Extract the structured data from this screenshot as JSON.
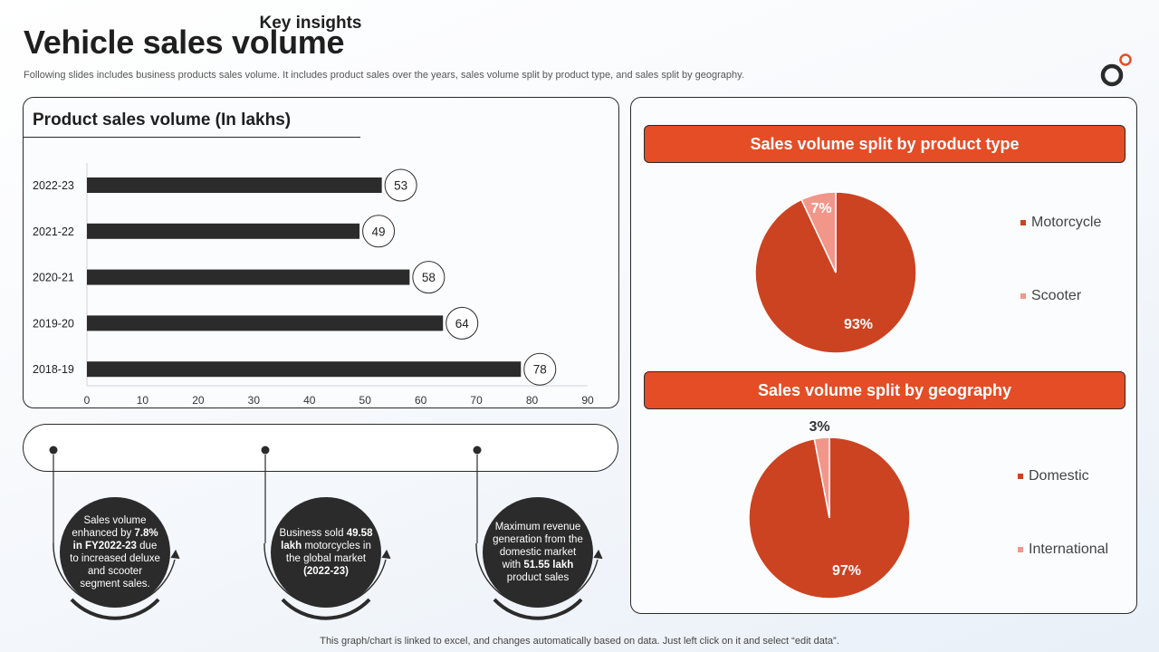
{
  "header": {
    "title": "Vehicle sales volume",
    "subtitle": "Following slides includes business products sales volume. It includes product sales over the years, sales volume split by product type, and sales split by geography."
  },
  "colors": {
    "bar": "#2b2b2b",
    "primary": "#cc4322",
    "secondary": "#f2968a",
    "header": "#e44d26",
    "dark": "#2b2b2b"
  },
  "chart_data": [
    {
      "type": "bar",
      "orientation": "horizontal",
      "title": "Product sales volume (In lakhs)",
      "categories": [
        "2022-23",
        "2021-22",
        "2020-21",
        "2019-20",
        "2018-19"
      ],
      "values": [
        53,
        49,
        58,
        64,
        78
      ],
      "xlim": [
        0,
        90
      ],
      "xticks": [
        0,
        10,
        20,
        30,
        40,
        50,
        60,
        70,
        80,
        90
      ],
      "value_labels": [
        "53",
        "49",
        "58",
        "64",
        "78"
      ]
    },
    {
      "type": "pie",
      "title": "Sales volume split by product type",
      "labels": [
        "Motorcycle",
        "Scooter"
      ],
      "values": [
        93,
        7
      ],
      "value_labels": [
        "93%",
        "7%"
      ],
      "legend": "right"
    },
    {
      "type": "pie",
      "title": "Sales volume split by geography",
      "labels": [
        "Domestic",
        "International"
      ],
      "values": [
        97,
        3
      ],
      "value_labels": [
        "97%",
        "3%"
      ],
      "legend": "right"
    }
  ],
  "insights": {
    "title": "Key insights",
    "items": [
      {
        "parts": [
          {
            "t": "Sales volume enhanced by ",
            "b": false
          },
          {
            "t": "7.8% in FY2022-23",
            "b": true
          },
          {
            "t": " due to increased deluxe and scooter segment sales.",
            "b": false
          }
        ]
      },
      {
        "parts": [
          {
            "t": "Business sold ",
            "b": false
          },
          {
            "t": "49.58 lakh",
            "b": true
          },
          {
            "t": " motorcycles in the global market ",
            "b": false
          },
          {
            "t": "(2022-23)",
            "b": true
          }
        ]
      },
      {
        "parts": [
          {
            "t": "Maximum revenue generation from the domestic market with ",
            "b": false
          },
          {
            "t": "51.55 lakh",
            "b": true
          },
          {
            "t": " product sales",
            "b": false
          }
        ]
      }
    ]
  },
  "footer": {
    "note": "This graph/chart is linked to excel, and changes automatically based on data. Just left click on it and select “edit data”."
  }
}
